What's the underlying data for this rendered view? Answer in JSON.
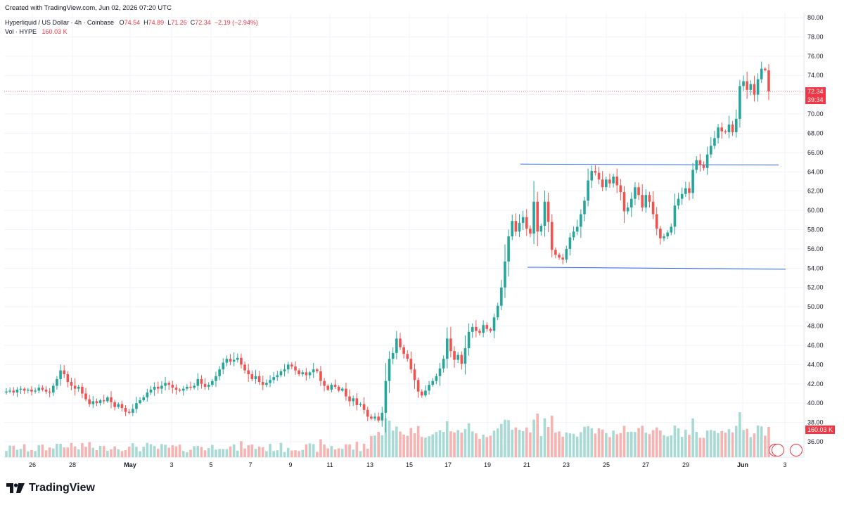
{
  "created_text": "Created with TradingView.com, Jun 02, 2026 07:20 UTC",
  "legend": {
    "symbol": "Hyperliquid / US Dollar · 4h · Coinbase",
    "o_label": "O",
    "o_value": "74.54",
    "h_label": "H",
    "h_value": "74.89",
    "l_label": "L",
    "l_value": "71.26",
    "c_label": "C",
    "c_value": "72.34",
    "change": "−2.19 (−2.94%)",
    "vol_label": "Vol · HYPE",
    "vol_value": "160.03 K"
  },
  "last_price_tag": "72.34",
  "countdown_tag": "39:34",
  "volume_tag": "160.03 K",
  "brand": "TradingView",
  "colors": {
    "up": "#26a69a",
    "down": "#ef5350",
    "vol_up": "#a7dad4",
    "vol_down": "#f7b3b1",
    "line": "#2962ff",
    "grid": "#f0f3fa"
  },
  "chart_data": {
    "type": "candlestick",
    "interval": "4h",
    "y_ticks": [
      "36.00",
      "38.00",
      "40.00",
      "42.00",
      "44.00",
      "46.00",
      "48.00",
      "50.00",
      "52.00",
      "54.00",
      "56.00",
      "58.00",
      "60.00",
      "62.00",
      "64.00",
      "66.00",
      "68.00",
      "70.00",
      "72.00",
      "74.00",
      "76.00",
      "78.00",
      "80.00"
    ],
    "x_ticks": [
      "26",
      "28",
      "May",
      "3",
      "5",
      "7",
      "9",
      "11",
      "13",
      "15",
      "17",
      "19",
      "21",
      "23",
      "25",
      "27",
      "29",
      "Jun",
      "3"
    ],
    "ylim": [
      35,
      80
    ],
    "closes": [
      41.2,
      41.3,
      41.1,
      41.4,
      41.5,
      41.3,
      41.4,
      41.2,
      41.3,
      41.6,
      41.4,
      41.2,
      41.1,
      41.8,
      42.5,
      43.4,
      43.0,
      42.2,
      41.8,
      41.5,
      41.7,
      41.0,
      40.4,
      39.9,
      40.2,
      40.0,
      40.3,
      40.2,
      40.6,
      40.1,
      39.6,
      39.9,
      39.5,
      39.1,
      39.0,
      39.4,
      40.0,
      40.3,
      40.6,
      41.1,
      41.4,
      41.7,
      41.5,
      41.8,
      42.1,
      41.9,
      41.6,
      41.4,
      41.3,
      41.5,
      41.7,
      41.6,
      41.8,
      42.5,
      42.0,
      41.7,
      41.9,
      42.3,
      42.8,
      43.5,
      44.2,
      44.6,
      44.3,
      44.5,
      44.7,
      44.0,
      43.4,
      43.0,
      42.5,
      42.8,
      42.2,
      41.9,
      42.1,
      42.4,
      42.7,
      42.9,
      43.3,
      43.5,
      44.0,
      43.8,
      43.4,
      43.0,
      43.2,
      42.9,
      43.2,
      43.5,
      43.3,
      42.3,
      41.8,
      41.4,
      41.9,
      41.7,
      41.3,
      41.5,
      40.7,
      40.2,
      40.5,
      39.8,
      39.9,
      39.3,
      38.6,
      38.4,
      38.6,
      38.2,
      39.0,
      42.3,
      44.6,
      45.2,
      46.7,
      45.8,
      45.1,
      44.6,
      43.5,
      42.4,
      41.2,
      40.8,
      41.3,
      41.9,
      42.3,
      42.8,
      43.6,
      44.6,
      46.7,
      45.4,
      44.5,
      45.0,
      44.1,
      45.7,
      47.4,
      47.9,
      47.5,
      47.3,
      48.1,
      47.7,
      47.5,
      48.9,
      50.1,
      52.0,
      54.7,
      57.3,
      58.9,
      57.8,
      58.7,
      59.3,
      58.1,
      57.6,
      60.9,
      57.8,
      58.4,
      60.9,
      58.8,
      55.9,
      55.4,
      55.1,
      54.9,
      56.0,
      57.2,
      57.8,
      58.3,
      59.6,
      61.0,
      63.1,
      64.1,
      63.9,
      63.2,
      62.4,
      63.2,
      62.8,
      63.5,
      62.6,
      61.9,
      59.9,
      60.3,
      61.2,
      62.4,
      61.6,
      60.3,
      61.6,
      60.9,
      59.6,
      58.1,
      57.1,
      57.3,
      57.7,
      58.3,
      60.5,
      61.2,
      61.7,
      62.3,
      61.8,
      64.2,
      65.2,
      64.7,
      64.4,
      65.8,
      66.7,
      67.5,
      68.6,
      68.2,
      68.1,
      68.9,
      68.1,
      69.5,
      72.9,
      73.4,
      72.5,
      73.1,
      72.0,
      73.6,
      74.7,
      74.54,
      72.34
    ]
  }
}
